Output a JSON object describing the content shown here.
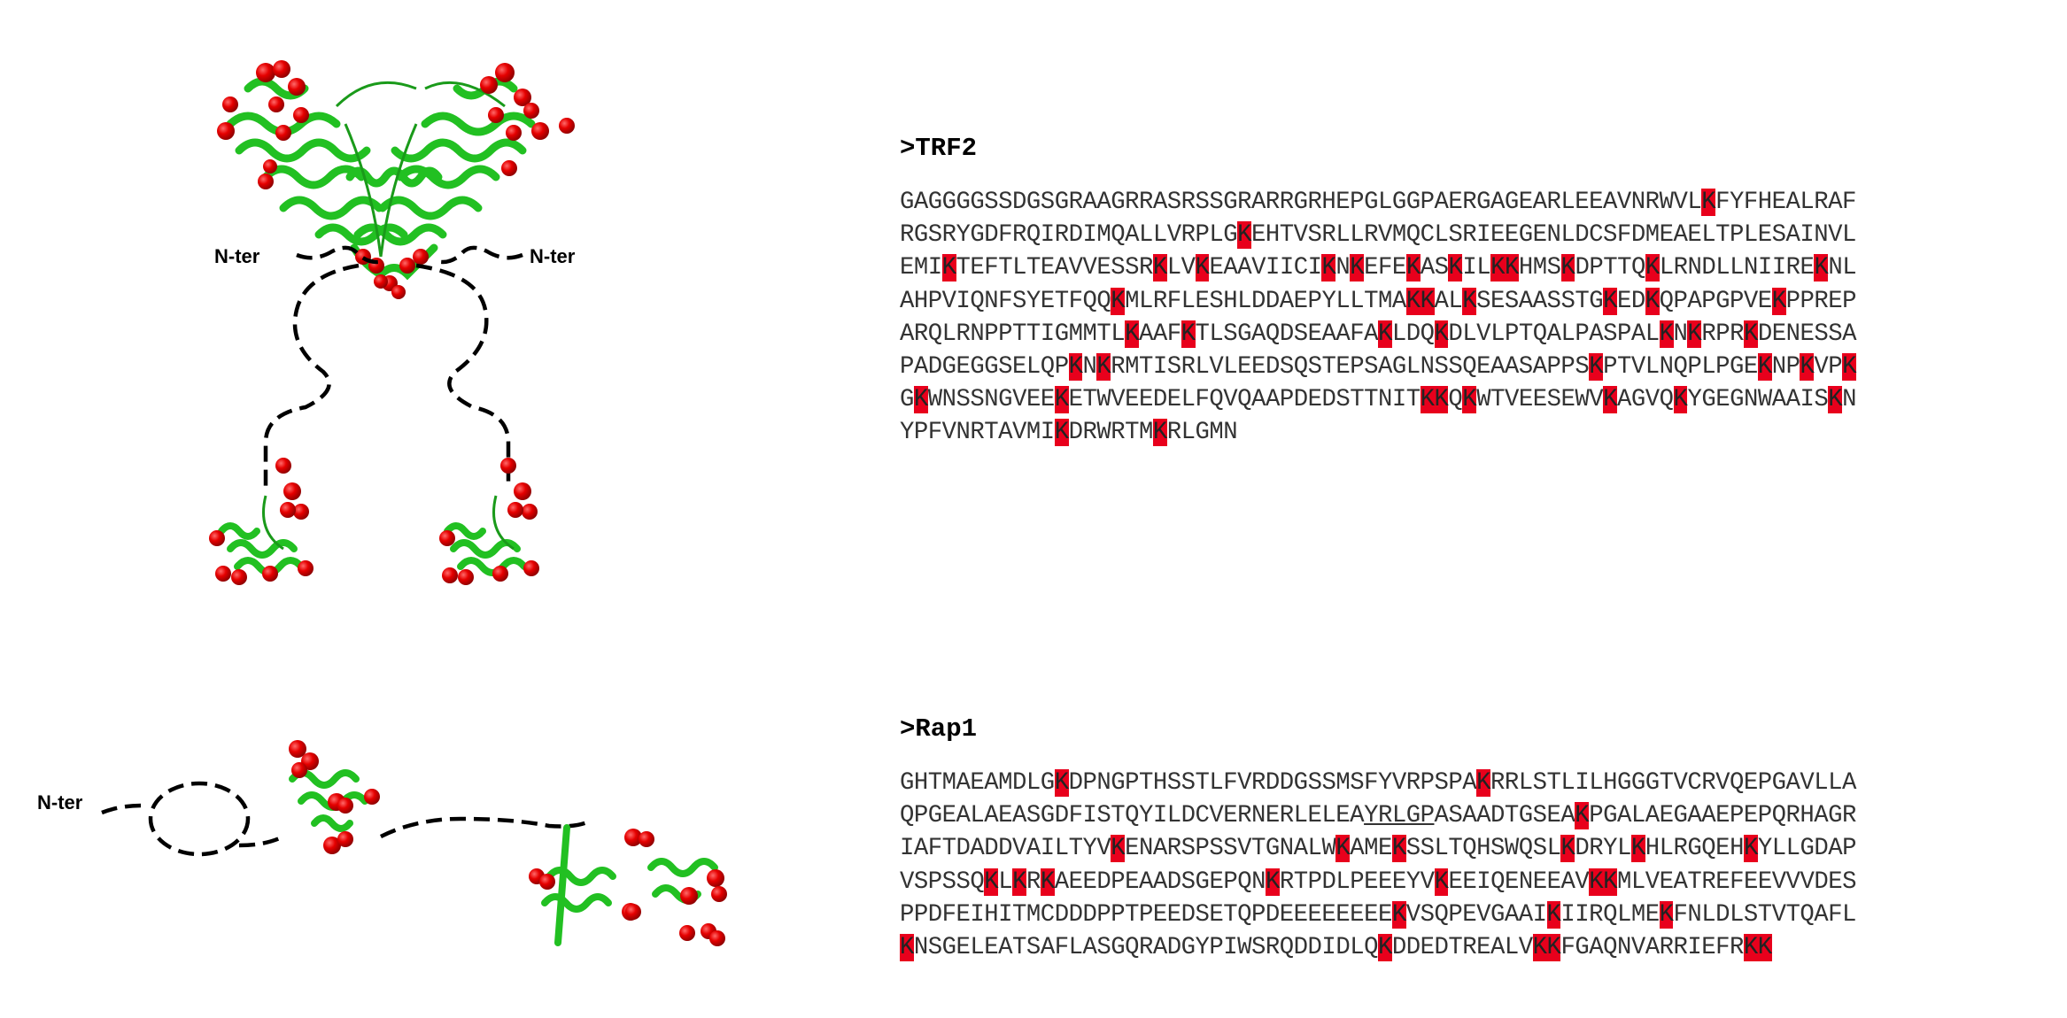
{
  "structures": {
    "trf2_nter_left": "N-ter",
    "trf2_nter_right": "N-ter",
    "rap1_nter": "N-ter"
  },
  "colors": {
    "helix": "#22c022",
    "lysine_sphere": "#e00000",
    "highlight": "#e8001c",
    "linker": "#000000"
  },
  "sequences": [
    {
      "id": "trf2",
      "title": ">TRF2",
      "lines": [
        [
          {
            "t": "GAGGGGSSDGSGRAAGRRASRSSGRARRGRHEPGLGGPAERGAGEARLEEAVNRWVL"
          },
          {
            "t": "K",
            "k": true
          },
          {
            "t": "FYFHEALRAF"
          }
        ],
        [
          {
            "t": "RGSRYGDFRQIRDIMQALLVRPLG"
          },
          {
            "t": "K",
            "k": true
          },
          {
            "t": "EHTVSRLLRVMQCLSRIEEGENLDCSFDMEAELTPLESAINVL"
          }
        ],
        [
          {
            "t": "EMI"
          },
          {
            "t": "K",
            "k": true
          },
          {
            "t": "TEFTLTEAVVESSR"
          },
          {
            "t": "K",
            "k": true
          },
          {
            "t": "LV"
          },
          {
            "t": "K",
            "k": true
          },
          {
            "t": "EAAVIICI"
          },
          {
            "t": "K",
            "k": true
          },
          {
            "t": "N"
          },
          {
            "t": "K",
            "k": true
          },
          {
            "t": "EFE"
          },
          {
            "t": "K",
            "k": true
          },
          {
            "t": "AS"
          },
          {
            "t": "K",
            "k": true
          },
          {
            "t": "IL"
          },
          {
            "t": "KK",
            "k": true
          },
          {
            "t": "HMS"
          },
          {
            "t": "K",
            "k": true
          },
          {
            "t": "DPTTQ"
          },
          {
            "t": "K",
            "k": true
          },
          {
            "t": "LRNDLLNIIRE"
          },
          {
            "t": "K",
            "k": true
          },
          {
            "t": "NL"
          }
        ],
        [
          {
            "t": "AHPVIQNFSYETFQQ"
          },
          {
            "t": "K",
            "k": true
          },
          {
            "t": "MLRFLESHLDDAEPYLLTMA"
          },
          {
            "t": "KK",
            "k": true
          },
          {
            "t": "AL"
          },
          {
            "t": "K",
            "k": true
          },
          {
            "t": "SESAASSTG"
          },
          {
            "t": "K",
            "k": true
          },
          {
            "t": "ED"
          },
          {
            "t": "K",
            "k": true
          },
          {
            "t": "QPAPGPVE"
          },
          {
            "t": "K",
            "k": true
          },
          {
            "t": "PPREP"
          }
        ],
        [
          {
            "t": "ARQLRNPPTTIGMMTL"
          },
          {
            "t": "K",
            "k": true
          },
          {
            "t": "AAF"
          },
          {
            "t": "K",
            "k": true
          },
          {
            "t": "TLSGAQDSEAAFA"
          },
          {
            "t": "K",
            "k": true
          },
          {
            "t": "LDQ"
          },
          {
            "t": "K",
            "k": true
          },
          {
            "t": "DLVLPTQALPASPAL"
          },
          {
            "t": "K",
            "k": true
          },
          {
            "t": "N"
          },
          {
            "t": "K",
            "k": true
          },
          {
            "t": "RPR"
          },
          {
            "t": "K",
            "k": true
          },
          {
            "t": "DENESSA"
          }
        ],
        [
          {
            "t": "PADGEGGSELQP"
          },
          {
            "t": "K",
            "k": true
          },
          {
            "t": "N"
          },
          {
            "t": "K",
            "k": true
          },
          {
            "t": "RMTISRLVLEEDSQSTEPSAGLNSSQEAASAPPS"
          },
          {
            "t": "K",
            "k": true
          },
          {
            "t": "PTVLNQPLPGE"
          },
          {
            "t": "K",
            "k": true
          },
          {
            "t": "NP"
          },
          {
            "t": "K",
            "k": true
          },
          {
            "t": "VP"
          },
          {
            "t": "K",
            "k": true
          }
        ],
        [
          {
            "t": "G"
          },
          {
            "t": "K",
            "k": true
          },
          {
            "t": "WNSSNGVEE"
          },
          {
            "t": "K",
            "k": true
          },
          {
            "t": "ETWVEEDELFQVQAAPDEDSTTNIT"
          },
          {
            "t": "KK",
            "k": true
          },
          {
            "t": "Q"
          },
          {
            "t": "K",
            "k": true
          },
          {
            "t": "WTVEESEWV"
          },
          {
            "t": "K",
            "k": true
          },
          {
            "t": "AGVQ"
          },
          {
            "t": "K",
            "k": true
          },
          {
            "t": "YGEGNWAAIS"
          },
          {
            "t": "K",
            "k": true
          },
          {
            "t": "N"
          }
        ],
        [
          {
            "t": "YPFVNRTAVMI"
          },
          {
            "t": "K",
            "k": true
          },
          {
            "t": "DRWRTM"
          },
          {
            "t": "K",
            "k": true
          },
          {
            "t": "RLGMN"
          }
        ]
      ]
    },
    {
      "id": "rap1",
      "title": ">Rap1",
      "lines": [
        [
          {
            "t": "GHTMAEAMDLG"
          },
          {
            "t": "K",
            "k": true
          },
          {
            "t": "DPNGPTHSSTLFVRDDGSSMSFYVRPSPA"
          },
          {
            "t": "K",
            "k": true
          },
          {
            "t": "RRLSTLILHGGGTVCRVQEPGAVLLA"
          }
        ],
        [
          {
            "t": "QPGEALAEASGDFISTQYILDCVERNERLELEA"
          },
          {
            "t": "YRLGP",
            "u": true
          },
          {
            "t": "ASAADTGSEA"
          },
          {
            "t": "K",
            "k": true
          },
          {
            "t": "PGALAEGAAEPEPQRHAGR"
          }
        ],
        [
          {
            "t": "IAFTDADDVAILTYV"
          },
          {
            "t": "K",
            "k": true
          },
          {
            "t": "ENARSPSSVTGNALW"
          },
          {
            "t": "K",
            "k": true
          },
          {
            "t": "AME"
          },
          {
            "t": "K",
            "k": true
          },
          {
            "t": "SSLTQHSWQSL"
          },
          {
            "t": "K",
            "k": true
          },
          {
            "t": "DRYL"
          },
          {
            "t": "K",
            "k": true
          },
          {
            "t": "HLRGQEH"
          },
          {
            "t": "K",
            "k": true
          },
          {
            "t": "YLLGDAP"
          }
        ],
        [
          {
            "t": "VSPSSQ"
          },
          {
            "t": "K",
            "k": true
          },
          {
            "t": "L"
          },
          {
            "t": "K",
            "k": true
          },
          {
            "t": "R"
          },
          {
            "t": "K",
            "k": true
          },
          {
            "t": "AEEDPEAADSGEPQN"
          },
          {
            "t": "K",
            "k": true
          },
          {
            "t": "RTPDLPEEEYV"
          },
          {
            "t": "K",
            "k": true
          },
          {
            "t": "EEIQENEEAV"
          },
          {
            "t": "KK",
            "k": true
          },
          {
            "t": "MLVEATREFEEVVVDES"
          }
        ],
        [
          {
            "t": "PPDFEIHITMCDDDPPTPEEDSETQPDEEEEEEEE"
          },
          {
            "t": "K",
            "k": true
          },
          {
            "t": "VSQPEVGAAI"
          },
          {
            "t": "K",
            "k": true
          },
          {
            "t": "IIRQLME"
          },
          {
            "t": "K",
            "k": true
          },
          {
            "t": "FNLDLSTVTQAFL"
          }
        ],
        [
          {
            "t": "K",
            "k": true
          },
          {
            "t": "NSGELEATSAFLASGQRADGYPIWSRQDDIDLQ"
          },
          {
            "t": "K",
            "k": true
          },
          {
            "t": "DDEDTREALV"
          },
          {
            "t": "KK",
            "k": true
          },
          {
            "t": "FGAQNVARRIEFR"
          },
          {
            "t": "KK",
            "k": true
          }
        ]
      ]
    }
  ]
}
